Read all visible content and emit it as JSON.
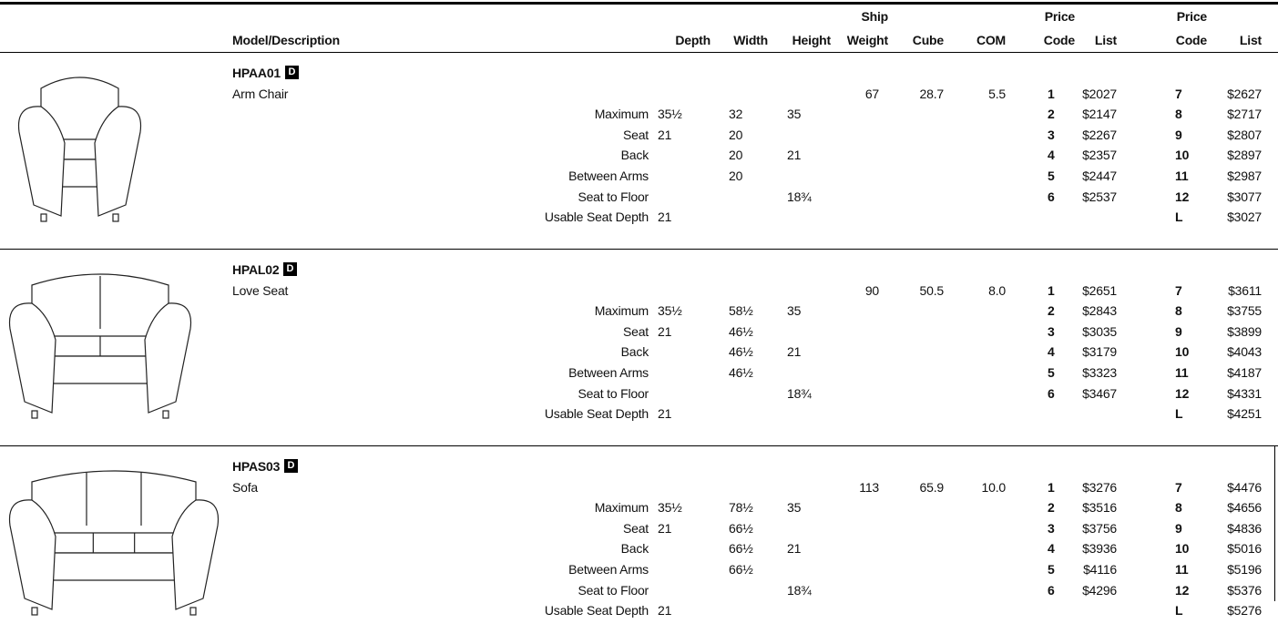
{
  "header": {
    "columns": [
      [
        "Model/Description"
      ],
      [
        "Depth"
      ],
      [
        "Width"
      ],
      [
        "Height"
      ],
      [
        "Ship",
        "Weight"
      ],
      [
        "Cube"
      ],
      [
        "COM"
      ],
      [
        "Price",
        "Code"
      ],
      [
        "List"
      ],
      [
        "Price",
        "Code"
      ],
      [
        "List"
      ]
    ]
  },
  "products": [
    {
      "model": "HPAA01",
      "badge": "D",
      "name": "Arm Chair",
      "ship_weight": "67",
      "cube": "28.7",
      "com": "5.5",
      "dimensions": [
        [
          "Maximum",
          "35½",
          "32",
          "35"
        ],
        [
          "Seat",
          "21",
          "20",
          null
        ],
        [
          "Back",
          null,
          "20",
          "21"
        ],
        [
          "Between Arms",
          null,
          "20",
          null
        ],
        [
          "Seat to Floor",
          null,
          null,
          "18¾"
        ],
        [
          "Usable Seat Depth",
          "21",
          null,
          null
        ]
      ],
      "prices": [
        [
          "1",
          "$2027",
          "7",
          "$2627"
        ],
        [
          "2",
          "$2147",
          "8",
          "$2717"
        ],
        [
          "3",
          "$2267",
          "9",
          "$2807"
        ],
        [
          "4",
          "$2357",
          "10",
          "$2897"
        ],
        [
          "5",
          "$2447",
          "11",
          "$2987"
        ],
        [
          "6",
          "$2537",
          "12",
          "$3077"
        ],
        [
          null,
          null,
          "L",
          "$3027"
        ]
      ]
    },
    {
      "model": "HPAL02",
      "badge": "D",
      "name": "Love Seat",
      "ship_weight": "90",
      "cube": "50.5",
      "com": "8.0",
      "dimensions": [
        [
          "Maximum",
          "35½",
          "58½",
          "35"
        ],
        [
          "Seat",
          "21",
          "46½",
          null
        ],
        [
          "Back",
          null,
          "46½",
          "21"
        ],
        [
          "Between Arms",
          null,
          "46½",
          null
        ],
        [
          "Seat to Floor",
          null,
          null,
          "18¾"
        ],
        [
          "Usable Seat Depth",
          "21",
          null,
          null
        ]
      ],
      "prices": [
        [
          "1",
          "$2651",
          "7",
          "$3611"
        ],
        [
          "2",
          "$2843",
          "8",
          "$3755"
        ],
        [
          "3",
          "$3035",
          "9",
          "$3899"
        ],
        [
          "4",
          "$3179",
          "10",
          "$4043"
        ],
        [
          "5",
          "$3323",
          "11",
          "$4187"
        ],
        [
          "6",
          "$3467",
          "12",
          "$4331"
        ],
        [
          null,
          null,
          "L",
          "$4251"
        ]
      ]
    },
    {
      "model": "HPAS03",
      "badge": "D",
      "name": "Sofa",
      "ship_weight": "113",
      "cube": "65.9",
      "com": "10.0",
      "dimensions": [
        [
          "Maximum",
          "35½",
          "78½",
          "35"
        ],
        [
          "Seat",
          "21",
          "66½",
          null
        ],
        [
          "Back",
          null,
          "66½",
          "21"
        ],
        [
          "Between Arms",
          null,
          "66½",
          null
        ],
        [
          "Seat to Floor",
          null,
          null,
          "18¾"
        ],
        [
          "Usable Seat Depth",
          "21",
          null,
          null
        ]
      ],
      "prices": [
        [
          "1",
          "$3276",
          "7",
          "$4476"
        ],
        [
          "2",
          "$3516",
          "8",
          "$4656"
        ],
        [
          "3",
          "$3756",
          "9",
          "$4836"
        ],
        [
          "4",
          "$3936",
          "10",
          "$5016"
        ],
        [
          "5",
          "$4116",
          "11",
          "$5196"
        ],
        [
          "6",
          "$4296",
          "12",
          "$5376"
        ],
        [
          null,
          null,
          "L",
          "$5276"
        ]
      ]
    }
  ]
}
